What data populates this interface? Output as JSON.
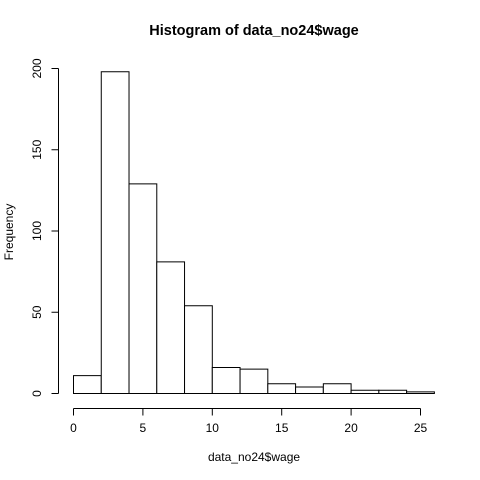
{
  "chart_data": {
    "type": "bar",
    "title": "Histogram of data_no24$wage",
    "xlabel": "data_no24$wage",
    "ylabel": "Frequency",
    "bins": [
      {
        "start": 0,
        "end": 2,
        "count": 11
      },
      {
        "start": 2,
        "end": 4,
        "count": 198
      },
      {
        "start": 4,
        "end": 6,
        "count": 129
      },
      {
        "start": 6,
        "end": 8,
        "count": 81
      },
      {
        "start": 8,
        "end": 10,
        "count": 54
      },
      {
        "start": 10,
        "end": 12,
        "count": 16
      },
      {
        "start": 12,
        "end": 14,
        "count": 15
      },
      {
        "start": 14,
        "end": 16,
        "count": 6
      },
      {
        "start": 16,
        "end": 18,
        "count": 4
      },
      {
        "start": 18,
        "end": 20,
        "count": 6
      },
      {
        "start": 20,
        "end": 22,
        "count": 2
      },
      {
        "start": 22,
        "end": 24,
        "count": 2
      },
      {
        "start": 24,
        "end": 26,
        "count": 1
      }
    ],
    "x_ticks": [
      0,
      5,
      10,
      15,
      20,
      25
    ],
    "y_ticks": [
      0,
      50,
      100,
      150,
      200
    ],
    "xlim": [
      0,
      26
    ],
    "ylim": [
      0,
      200
    ],
    "grid": false
  }
}
